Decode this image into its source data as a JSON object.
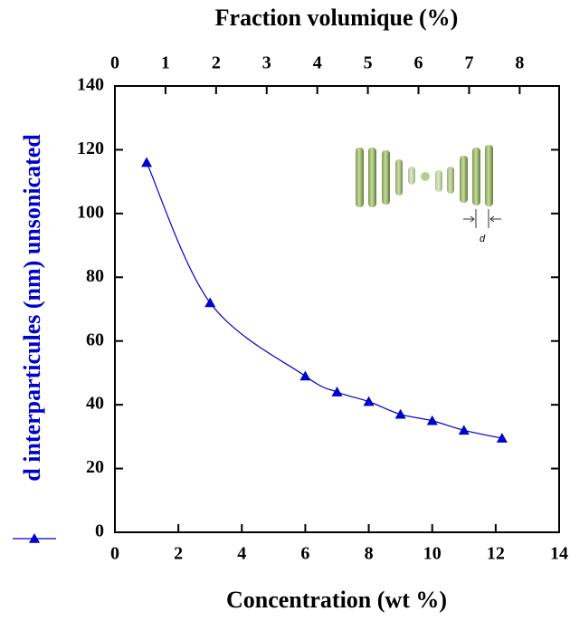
{
  "chart_data": {
    "type": "line",
    "x_title": "Concentration (wt %)",
    "x2_title": "Fraction volumique (%)",
    "inset_label": "d",
    "x": [
      1,
      3,
      6,
      7,
      8,
      9,
      10,
      11,
      12.2
    ],
    "series": [
      {
        "name": "d interparticules (nm) unsonicated",
        "color": "#0000cc",
        "marker": "triangle",
        "values": [
          116,
          72,
          49,
          44,
          41,
          37,
          35,
          32,
          29.5
        ]
      }
    ],
    "xlim": [
      0,
      14
    ],
    "xticks": [
      0,
      2,
      4,
      6,
      8,
      10,
      12,
      14
    ],
    "x2lim": [
      0,
      8.78
    ],
    "x2ticks": [
      0,
      1,
      2,
      3,
      4,
      5,
      6,
      7,
      8
    ],
    "ylim": [
      0,
      140
    ],
    "yticks": [
      0,
      20,
      40,
      60,
      80,
      100,
      120,
      140
    ],
    "grid": false,
    "legend": "left"
  }
}
